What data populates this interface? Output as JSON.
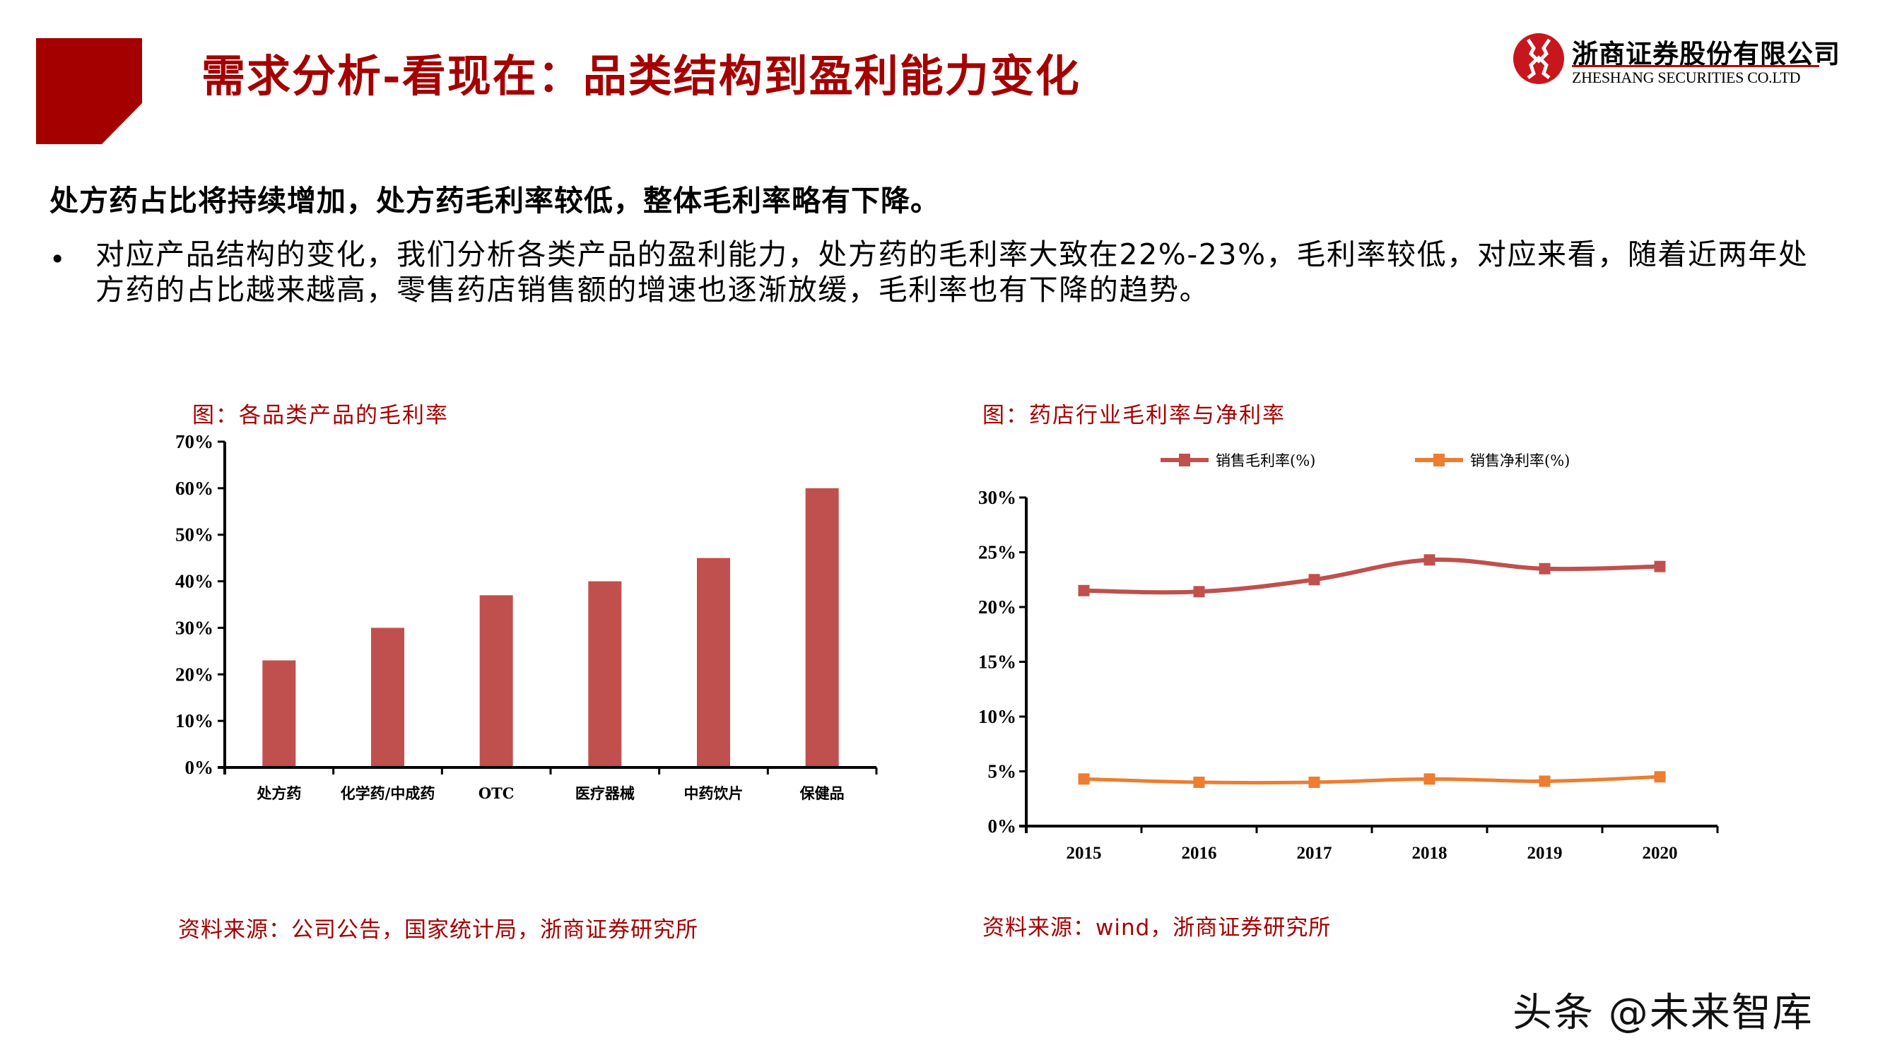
{
  "slide": {
    "title": "需求分析-看现在：品类结构到盈利能力变化",
    "logo": {
      "name_cn": "浙商证券股份有限公司",
      "name_en": "ZHESHANG SECURITIES CO.LTD"
    },
    "headline": "处方药占比将持续增加，处方药毛利率较低，整体毛利率略有下降。",
    "bullet_marker": "•",
    "bullet_text": "对应产品结构的变化，我们分析各类产品的盈利能力，处方药的毛利率大致在22%-23%，毛利率较低，对应来看，随着近两年处方药的占比越来越高，零售药店销售额的增速也逐渐放缓，毛利率也有下降的趋势。",
    "watermark": "头条 @未来智库",
    "colors": {
      "brand_red": "#a50000",
      "bar_fill": "#c0504d",
      "line_gross": "#c0504d",
      "line_net": "#ed7d31"
    }
  },
  "left_chart": {
    "caption": "图：各品类产品的毛利率",
    "source": "资料来源：公司公告，国家统计局，浙商证券研究所",
    "y_ticks": [
      "0%",
      "10%",
      "20%",
      "30%",
      "40%",
      "50%",
      "60%",
      "70%"
    ]
  },
  "right_chart": {
    "caption": "图：药店行业毛利率与净利率",
    "source": "资料来源：wind，浙商证券研究所",
    "legend": [
      "销售毛利率(%)",
      "销售净利率(%)"
    ],
    "y_ticks": [
      "0%",
      "5%",
      "10%",
      "15%",
      "20%",
      "25%",
      "30%"
    ],
    "x_ticks": [
      "2015",
      "2016",
      "2017",
      "2018",
      "2019",
      "2020"
    ]
  },
  "chart_data": [
    {
      "type": "bar",
      "title": "图：各品类产品的毛利率",
      "categories": [
        "处方药",
        "化学药/中成药",
        "OTC",
        "医疗器械",
        "中药饮片",
        "保健品"
      ],
      "values": [
        23,
        30,
        37,
        40,
        45,
        60
      ],
      "unit": "%",
      "xlabel": "",
      "ylabel": "",
      "ylim": [
        0,
        70
      ],
      "yticks": [
        0,
        10,
        20,
        30,
        40,
        50,
        60,
        70
      ],
      "grid": false,
      "legend": null,
      "color": "#c0504d"
    },
    {
      "type": "line",
      "title": "图：药店行业毛利率与净利率",
      "x": [
        "2015",
        "2016",
        "2017",
        "2018",
        "2019",
        "2020"
      ],
      "series": [
        {
          "name": "销售毛利率(%)",
          "values": [
            21.5,
            21.4,
            22.5,
            24.3,
            23.5,
            23.7
          ],
          "color": "#c0504d",
          "marker": "square",
          "smooth": true
        },
        {
          "name": "销售净利率(%)",
          "values": [
            4.3,
            4.0,
            4.0,
            4.3,
            4.1,
            4.5
          ],
          "color": "#ed7d31",
          "marker": "square",
          "smooth": true
        }
      ],
      "unit": "%",
      "xlabel": "",
      "ylabel": "",
      "ylim": [
        0,
        30
      ],
      "yticks": [
        0,
        5,
        10,
        15,
        20,
        25,
        30
      ],
      "grid": false,
      "legend_position": "top"
    }
  ]
}
